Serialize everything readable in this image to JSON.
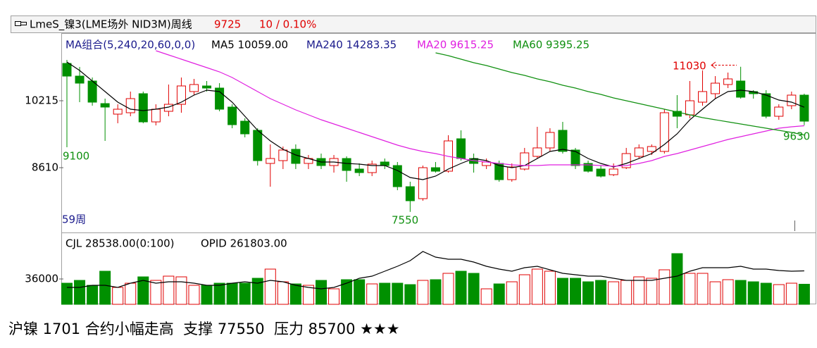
{
  "header": {
    "instrument": "LmeS_镍3(LME场外 NID3M)周线",
    "price": "9725",
    "change": "10 / 0.10%"
  },
  "caption": "沪镍 1701 合约小幅走高  支撑 77550  压力 85700 ★★★",
  "chart_data": [
    {
      "type": "candlestick",
      "legend_group": "MA组合(5,240,20,60,0,0)",
      "legend_ma240": "MA240 14283.35",
      "period_label": "59周",
      "annotations": [
        "11030",
        "9100",
        "7550",
        "9630"
      ],
      "open": [
        11110,
        10806,
        10688,
        10147,
        9894,
        9928,
        10384,
        9708,
        9962,
        10130,
        10435,
        10570,
        10519,
        10063,
        9725,
        9506,
        8712,
        8779,
        9050,
        8712,
        8830,
        8661,
        8830,
        8577,
        8492,
        8746,
        8661,
        8154,
        7867,
        8610,
        8526,
        9303,
        8830,
        8661,
        8712,
        8323,
        8577,
        8881,
        9084,
        9506,
        9033,
        8712,
        8577,
        8442,
        8610,
        8881,
        9000,
        9000,
        9962,
        9877,
        10181,
        10384,
        10604,
        10688,
        10435,
        10384,
        9843,
        10097,
        10350
      ],
      "high": [
        11195,
        11026,
        10772,
        10266,
        10130,
        10435,
        10435,
        10130,
        10604,
        10772,
        10739,
        10688,
        10637,
        10130,
        9793,
        9556,
        9168,
        9117,
        9168,
        8914,
        8948,
        8914,
        8881,
        8712,
        8779,
        8830,
        8746,
        8273,
        8661,
        8746,
        9387,
        9506,
        8948,
        8830,
        8779,
        8712,
        9084,
        9590,
        9556,
        9708,
        9084,
        8779,
        8661,
        8712,
        9084,
        9168,
        9168,
        10012,
        10350,
        10688,
        10941,
        10806,
        10891,
        11030,
        10469,
        10469,
        10130,
        10435,
        10384
      ],
      "low": [
        9100,
        10181,
        10097,
        9252,
        9675,
        9843,
        9675,
        9624,
        9843,
        9928,
        10350,
        10435,
        9962,
        9556,
        9337,
        8661,
        8154,
        8577,
        8577,
        8577,
        8577,
        8492,
        8273,
        8408,
        8408,
        8577,
        8070,
        7550,
        7817,
        8492,
        8492,
        8779,
        8492,
        8577,
        8273,
        8273,
        8543,
        8830,
        9000,
        8948,
        8577,
        8492,
        8374,
        8408,
        8577,
        8830,
        8914,
        8948,
        9556,
        9793,
        10097,
        10266,
        10519,
        10266,
        10266,
        9793,
        9759,
        10012,
        9630
      ],
      "close": [
        10806,
        10637,
        10181,
        10063,
        10012,
        10266,
        9708,
        10012,
        10130,
        10570,
        10604,
        10519,
        10012,
        9641,
        9421,
        8779,
        8830,
        9033,
        8712,
        8830,
        8661,
        8830,
        8543,
        8492,
        8695,
        8661,
        8154,
        7817,
        8610,
        8526,
        9252,
        8830,
        8712,
        8746,
        8323,
        8627,
        8965,
        9084,
        9455,
        9000,
        8661,
        8526,
        8408,
        8577,
        8948,
        9084,
        9117,
        9928,
        9843,
        10215,
        10435,
        10637,
        10739,
        10300,
        10384,
        9843,
        10063,
        10350,
        9725
      ],
      "up_color": "#e00000",
      "down_color": "#009000",
      "series": [
        {
          "name": "MA5 10059.00",
          "color": "#000000",
          "values": [
            11144,
            10941,
            10688,
            10435,
            10181,
            10012,
            9979,
            10012,
            10063,
            10181,
            10350,
            10468,
            10435,
            10181,
            9843,
            9506,
            9252,
            9050,
            8914,
            8830,
            8746,
            8746,
            8712,
            8695,
            8661,
            8661,
            8543,
            8374,
            8323,
            8408,
            8577,
            8712,
            8830,
            8779,
            8661,
            8610,
            8661,
            8830,
            8999,
            9050,
            8999,
            8830,
            8712,
            8627,
            8712,
            8830,
            8948,
            9168,
            9421,
            9759,
            10012,
            10266,
            10435,
            10468,
            10435,
            10350,
            10232,
            10181,
            10059
          ]
        },
        {
          "name": "MA20 9615.25",
          "color": "#e020e0",
          "values": [
            null,
            null,
            null,
            null,
            null,
            null,
            null,
            11414,
            11313,
            11212,
            11110,
            11009,
            10907,
            10772,
            10603,
            10435,
            10266,
            10131,
            9995,
            9877,
            9759,
            9658,
            9556,
            9455,
            9354,
            9252,
            9151,
            9066,
            8999,
            8948,
            8881,
            8830,
            8779,
            8746,
            8712,
            8678,
            8661,
            8661,
            8678,
            8678,
            8678,
            8678,
            8661,
            8644,
            8661,
            8712,
            8779,
            8881,
            8948,
            9033,
            9117,
            9202,
            9286,
            9354,
            9421,
            9489,
            9556,
            9590,
            9615
          ]
        },
        {
          "name": "MA60 9395.25",
          "color": "#109010",
          "values": [
            null,
            null,
            null,
            null,
            null,
            null,
            null,
            null,
            null,
            null,
            null,
            null,
            null,
            null,
            null,
            null,
            null,
            null,
            null,
            null,
            null,
            null,
            null,
            null,
            null,
            null,
            null,
            null,
            null,
            11364,
            11296,
            11212,
            11127,
            11060,
            10975,
            10891,
            10823,
            10739,
            10671,
            10587,
            10519,
            10435,
            10367,
            10283,
            10215,
            10147,
            10080,
            10012,
            9945,
            9877,
            9810,
            9759,
            9708,
            9658,
            9607,
            9556,
            9506,
            9455,
            9395
          ]
        }
      ],
      "ylim": [
        7090,
        11820
      ],
      "yticks": [
        8610,
        10215
      ]
    },
    {
      "type": "bar",
      "label": "CJL 28538.00(0:100)",
      "values": [
        30000,
        34000,
        27000,
        47000,
        24000,
        30000,
        39000,
        34000,
        40000,
        39000,
        27000,
        27000,
        30000,
        30000,
        30000,
        37000,
        50000,
        32000,
        29000,
        27000,
        34000,
        22000,
        35000,
        35000,
        29000,
        30000,
        30000,
        28000,
        34000,
        35000,
        44000,
        47000,
        44000,
        22000,
        29000,
        32000,
        42000,
        50000,
        47000,
        37000,
        37000,
        32000,
        34000,
        32000,
        34000,
        39000,
        37000,
        49000,
        72000,
        44000,
        44000,
        32000,
        35000,
        34000,
        32000,
        30000,
        28000,
        30000,
        28538
      ],
      "ylim": [
        0,
        100000
      ],
      "yticks": [
        36000
      ],
      "series": [
        {
          "name": "OPID 261803.00",
          "color": "#000000",
          "axis": "y2",
          "values": [
            231200,
            231200,
            235100,
            235100,
            231200,
            239000,
            244200,
            239000,
            241600,
            241600,
            239000,
            235100,
            235100,
            239000,
            241600,
            239000,
            244200,
            241600,
            235100,
            231200,
            228600,
            231200,
            239000,
            248100,
            252000,
            261100,
            270200,
            280600,
            297500,
            287100,
            283200,
            283200,
            278000,
            270200,
            265000,
            261100,
            267600,
            270200,
            263700,
            257200,
            254600,
            252000,
            252000,
            248100,
            244200,
            244200,
            244200,
            248100,
            252000,
            261100,
            267600,
            267600,
            267600,
            270200,
            265000,
            265000,
            262400,
            261100,
            261803
          ]
        }
      ],
      "y2lim": [
        200000,
        330000
      ]
    }
  ]
}
